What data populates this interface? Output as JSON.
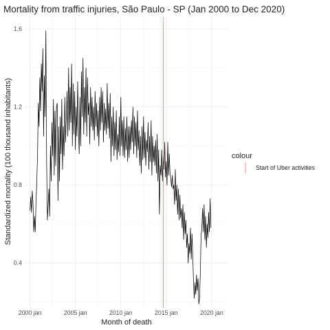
{
  "chart_data": {
    "type": "line",
    "title": "Mortality from traffic injuries, São Paulo - SP (Jan 2000 to Dec 2020)",
    "xlabel": "Month of death",
    "ylabel": "Standardized mortality (100 thousand inhabitants)",
    "x_ticks": [
      "2000 jan",
      "2005 jan",
      "2010 jan",
      "2015 jan",
      "2020 jan"
    ],
    "y_ticks": [
      "0.4",
      "0.8",
      "1.2",
      "1.6"
    ],
    "xlim": [
      "1999-07",
      "2021-10"
    ],
    "ylim": [
      0.17,
      1.66
    ],
    "grid": true,
    "legend": {
      "title": "colour",
      "position": "right",
      "entries": [
        {
          "label": "Start of Uber activities",
          "color": "#f8766d"
        }
      ]
    },
    "vline": {
      "x": "2014-09",
      "color": "#f8766d",
      "label": "Start of Uber activities"
    },
    "series": [
      {
        "color": "#000000",
        "start": "2000-01",
        "frequency": "monthly",
        "values": [
          0.67,
          0.74,
          0.66,
          0.77,
          0.71,
          0.56,
          0.64,
          0.56,
          0.72,
          0.82,
          0.95,
          1.22,
          1.1,
          1.35,
          1.18,
          1.42,
          1.28,
          1.5,
          1.05,
          1.36,
          1.15,
          1.59,
          0.92,
          0.62,
          0.7,
          0.78,
          0.64,
          1.0,
          0.82,
          1.12,
          0.95,
          1.24,
          0.85,
          1.18,
          0.9,
          1.2,
          1.22,
          0.72,
          1.1,
          0.82,
          1.15,
          0.96,
          1.24,
          0.88,
          1.1,
          0.95,
          1.25,
          1.02,
          1.15,
          1.28,
          1.05,
          1.4,
          1.08,
          1.3,
          1.12,
          1.42,
          1.0,
          1.32,
          1.06,
          1.28,
          0.98,
          1.2,
          1.05,
          1.33,
          1.1,
          0.96,
          1.25,
          1.0,
          1.38,
          1.15,
          1.45,
          1.06,
          1.3,
          1.12,
          1.4,
          1.05,
          1.35,
          1.16,
          1.22,
          1.01,
          1.3,
          1.1,
          1.25,
          1.08,
          1.2,
          1.03,
          1.28,
          1.1,
          1.22,
          1.05,
          1.18,
          1.0,
          1.25,
          1.08,
          1.3,
          1.12,
          1.28,
          1.02,
          1.22,
          1.08,
          1.19,
          1.06,
          1.32,
          1.09,
          1.22,
          1.04,
          1.27,
          0.92,
          1.15,
          1.0,
          1.2,
          0.95,
          1.12,
          0.98,
          1.18,
          0.93,
          1.06,
          0.97,
          1.15,
          0.95,
          1.25,
          1.0,
          1.13,
          0.95,
          1.15,
          0.94,
          1.09,
          0.98,
          1.15,
          0.92,
          1.1,
          0.94,
          1.1,
          0.98,
          1.13,
          1.02,
          1.2,
          0.96,
          1.15,
          1.0,
          1.12,
          0.94,
          1.18,
          0.98,
          1.08,
          0.9,
          1.05,
          0.86,
          1.1,
          0.93,
          1.15,
          0.94,
          1.07,
          0.9,
          1.03,
          0.97,
          1.12,
          0.88,
          1.05,
          0.92,
          1.13,
          0.85,
          1.05,
          0.92,
          1.0,
          0.9,
          1.03,
          0.86,
          1.06,
          0.82,
          0.98,
          0.65,
          0.9,
          0.85,
          0.98,
          0.82,
          0.95,
          0.88,
          1.02,
          0.84,
          0.92,
          0.8,
          1.02,
          0.85,
          0.96,
          0.86,
          0.83,
          0.79,
          0.85,
          0.78,
          0.8,
          0.7,
          0.88,
          0.72,
          0.8,
          0.65,
          0.78,
          0.62,
          0.75,
          0.63,
          0.68,
          0.58,
          0.7,
          0.52,
          0.66,
          0.55,
          0.62,
          0.48,
          0.55,
          0.4,
          0.5,
          0.45,
          0.58,
          0.42,
          0.55,
          0.44,
          0.3,
          0.22,
          0.3,
          0.24,
          0.34,
          0.26,
          0.32,
          0.19,
          0.22,
          0.35,
          0.54,
          0.58,
          0.68,
          0.56,
          0.7,
          0.52,
          0.64,
          0.48,
          0.6,
          0.53,
          0.66,
          0.56,
          0.73,
          0.58
        ]
      }
    ]
  }
}
